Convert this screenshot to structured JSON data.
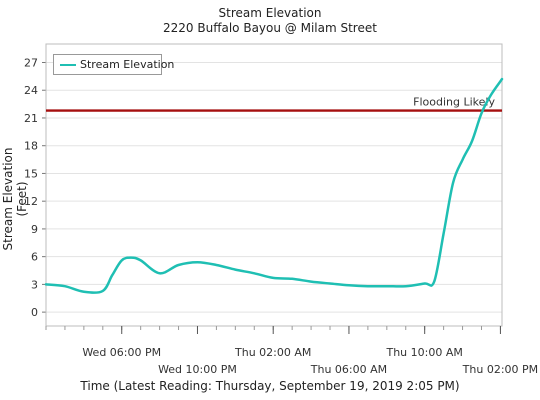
{
  "chart_data": {
    "type": "line",
    "title": "Stream Elevation",
    "subtitle": "2220 Buffalo Bayou @ Milam Street",
    "xlabel": "Time (Latest Reading: Thursday, September 19, 2019 2:05 PM)",
    "ylabel": "Stream Elevation (Feet)",
    "ylim": [
      -1.5,
      29
    ],
    "y_ticks": [
      0,
      3,
      6,
      9,
      12,
      15,
      18,
      21,
      24,
      27
    ],
    "x_ticks": [
      "Wed 06:00 PM",
      "Wed 10:00 PM",
      "Thu 02:00 AM",
      "Thu 06:00 AM",
      "Thu 10:00 AM",
      "Thu 02:00 PM"
    ],
    "grid": true,
    "legend_position": "top-left",
    "threshold": {
      "label": "Flooding Likely",
      "value": 21.8,
      "color": "#a50f0f"
    },
    "series": [
      {
        "name": "Stream Elevation",
        "color": "#1fbfb3",
        "x": [
          "Wed 02:00 PM",
          "Wed 03:00 PM",
          "Wed 04:00 PM",
          "Wed 05:00 PM",
          "Wed 05:30 PM",
          "Wed 06:00 PM",
          "Wed 06:30 PM",
          "Wed 07:00 PM",
          "Wed 08:00 PM",
          "Wed 09:00 PM",
          "Wed 10:00 PM",
          "Wed 11:00 PM",
          "Thu 12:00 AM",
          "Thu 01:00 AM",
          "Thu 02:00 AM",
          "Thu 03:00 AM",
          "Thu 04:00 AM",
          "Thu 05:00 AM",
          "Thu 06:00 AM",
          "Thu 07:00 AM",
          "Thu 08:00 AM",
          "Thu 09:00 AM",
          "Thu 10:00 AM",
          "Thu 10:30 AM",
          "Thu 11:00 AM",
          "Thu 11:30 AM",
          "Thu 12:00 PM",
          "Thu 12:30 PM",
          "Thu 01:00 PM",
          "Thu 01:30 PM",
          "Thu 02:05 PM"
        ],
        "values": [
          3.0,
          2.8,
          2.2,
          2.3,
          4.0,
          5.6,
          5.9,
          5.6,
          4.2,
          5.1,
          5.4,
          5.1,
          4.6,
          4.2,
          3.7,
          3.6,
          3.3,
          3.1,
          2.9,
          2.8,
          2.8,
          2.8,
          3.1,
          3.3,
          8.5,
          14.0,
          16.5,
          18.5,
          21.5,
          23.5,
          25.2
        ]
      }
    ]
  }
}
